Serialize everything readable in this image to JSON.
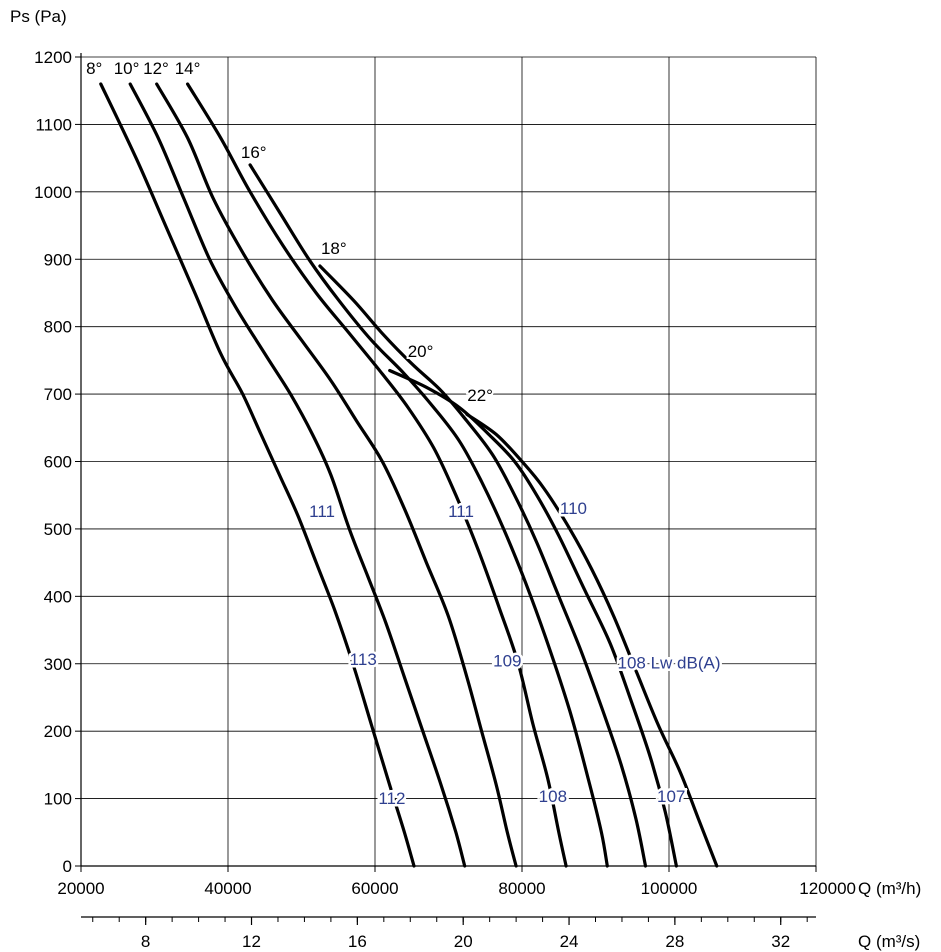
{
  "chart_data": {
    "type": "line",
    "y_axis": {
      "label": "Ps  (Pa)",
      "min": 0,
      "max": 1200,
      "ticks": [
        0,
        100,
        200,
        300,
        400,
        500,
        600,
        700,
        800,
        900,
        1000,
        1100,
        1200
      ]
    },
    "x_axis": {
      "label": "Q (m³/h)",
      "min": 20000,
      "max": 120000,
      "ticks": [
        20000,
        40000,
        60000,
        80000,
        100000,
        120000
      ],
      "tick_labels": [
        "20000",
        "40000",
        "60000",
        "80000",
        "100000",
        "120000"
      ]
    },
    "x2_axis": {
      "label": "Q (m³/s)",
      "min": 5.556,
      "max": 33.333,
      "ticks": [
        8,
        12,
        16,
        20,
        24,
        28,
        32
      ],
      "tick_labels": [
        "8",
        "12",
        "16",
        "20",
        "24",
        "28",
        "32"
      ]
    },
    "grid": true,
    "series": [
      {
        "name": "8°",
        "points": [
          [
            22700,
            1160
          ],
          [
            27500,
            1050
          ],
          [
            31500,
            950
          ],
          [
            35500,
            850
          ],
          [
            39000,
            760
          ],
          [
            42000,
            700
          ],
          [
            44500,
            640
          ],
          [
            47000,
            580
          ],
          [
            49500,
            520
          ],
          [
            52000,
            450
          ],
          [
            54500,
            380
          ],
          [
            57000,
            300
          ],
          [
            59500,
            210
          ],
          [
            62000,
            120
          ],
          [
            64000,
            50
          ],
          [
            65300,
            0
          ]
        ]
      },
      {
        "name": "10°",
        "points": [
          [
            26700,
            1160
          ],
          [
            30500,
            1080
          ],
          [
            34000,
            990
          ],
          [
            37500,
            900
          ],
          [
            41000,
            830
          ],
          [
            45000,
            760
          ],
          [
            48500,
            700
          ],
          [
            51500,
            640
          ],
          [
            54000,
            580
          ],
          [
            56500,
            500
          ],
          [
            59000,
            430
          ],
          [
            61500,
            360
          ],
          [
            64000,
            280
          ],
          [
            66500,
            200
          ],
          [
            69000,
            120
          ],
          [
            71000,
            50
          ],
          [
            72200,
            0
          ]
        ]
      },
      {
        "name": "12°",
        "points": [
          [
            30300,
            1160
          ],
          [
            34500,
            1080
          ],
          [
            38000,
            990
          ],
          [
            42000,
            910
          ],
          [
            46000,
            840
          ],
          [
            50000,
            780
          ],
          [
            54000,
            720
          ],
          [
            57500,
            660
          ],
          [
            61000,
            600
          ],
          [
            64000,
            530
          ],
          [
            67000,
            450
          ],
          [
            70000,
            370
          ],
          [
            72500,
            280
          ],
          [
            74500,
            200
          ],
          [
            76500,
            120
          ],
          [
            78000,
            50
          ],
          [
            79200,
            0
          ]
        ]
      },
      {
        "name": "14°",
        "points": [
          [
            34500,
            1160
          ],
          [
            39000,
            1080
          ],
          [
            43000,
            1000
          ],
          [
            47500,
            920
          ],
          [
            52000,
            850
          ],
          [
            56500,
            790
          ],
          [
            61000,
            730
          ],
          [
            64500,
            680
          ],
          [
            68000,
            620
          ],
          [
            71000,
            550
          ],
          [
            74000,
            470
          ],
          [
            77000,
            380
          ],
          [
            79500,
            300
          ],
          [
            81500,
            210
          ],
          [
            83500,
            130
          ],
          [
            85000,
            50
          ],
          [
            86000,
            0
          ]
        ]
      },
      {
        "name": "16°",
        "points": [
          [
            43000,
            1040
          ],
          [
            47000,
            970
          ],
          [
            51000,
            900
          ],
          [
            55000,
            840
          ],
          [
            59500,
            780
          ],
          [
            64000,
            730
          ],
          [
            68000,
            680
          ],
          [
            71500,
            630
          ],
          [
            74500,
            570
          ],
          [
            77500,
            500
          ],
          [
            80500,
            420
          ],
          [
            83500,
            330
          ],
          [
            86500,
            230
          ],
          [
            89000,
            130
          ],
          [
            90800,
            50
          ],
          [
            91600,
            0
          ]
        ]
      },
      {
        "name": "18°",
        "points": [
          [
            52500,
            890
          ],
          [
            57000,
            840
          ],
          [
            61000,
            790
          ],
          [
            65000,
            745
          ],
          [
            69000,
            705
          ],
          [
            72500,
            660
          ],
          [
            76000,
            610
          ],
          [
            79000,
            550
          ],
          [
            82000,
            480
          ],
          [
            85000,
            400
          ],
          [
            88000,
            320
          ],
          [
            91000,
            230
          ],
          [
            93500,
            150
          ],
          [
            95500,
            70
          ],
          [
            96800,
            0
          ]
        ]
      },
      {
        "name": "20°",
        "points": [
          [
            62000,
            735
          ],
          [
            67000,
            710
          ],
          [
            71500,
            680
          ],
          [
            75500,
            640
          ],
          [
            79000,
            600
          ],
          [
            82000,
            550
          ],
          [
            85000,
            490
          ],
          [
            88500,
            410
          ],
          [
            92000,
            330
          ],
          [
            95000,
            240
          ],
          [
            97500,
            160
          ],
          [
            99500,
            80
          ],
          [
            101000,
            0
          ]
        ]
      },
      {
        "name": "22°",
        "points": [
          [
            72500,
            670
          ],
          [
            76500,
            640
          ],
          [
            80000,
            600
          ],
          [
            83000,
            560
          ],
          [
            86500,
            500
          ],
          [
            89500,
            440
          ],
          [
            92500,
            370
          ],
          [
            95500,
            290
          ],
          [
            98500,
            210
          ],
          [
            101500,
            140
          ],
          [
            104000,
            70
          ],
          [
            106500,
            0
          ]
        ]
      }
    ],
    "series_labels": [
      {
        "text": "8°",
        "x": 21800,
        "y": 1175
      },
      {
        "text": "10°",
        "x": 26200,
        "y": 1175
      },
      {
        "text": "12°",
        "x": 30200,
        "y": 1175
      },
      {
        "text": "14°",
        "x": 34500,
        "y": 1175
      },
      {
        "text": "16°",
        "x": 43500,
        "y": 1050
      },
      {
        "text": "18°",
        "x": 54400,
        "y": 908
      },
      {
        "text": "20°",
        "x": 66200,
        "y": 755
      },
      {
        "text": "22°",
        "x": 74300,
        "y": 690
      }
    ],
    "annotations": [
      {
        "text": "111",
        "x": 52800,
        "y": 518
      },
      {
        "text": "111",
        "x": 71700,
        "y": 518
      },
      {
        "text": "110",
        "x": 87000,
        "y": 522
      },
      {
        "text": "113",
        "x": 58400,
        "y": 298
      },
      {
        "text": "109",
        "x": 78000,
        "y": 296
      },
      {
        "text": "108 Lw dB(A)",
        "x": 100000,
        "y": 293
      },
      {
        "text": "112",
        "x": 62300,
        "y": 92
      },
      {
        "text": "108",
        "x": 84200,
        "y": 95
      },
      {
        "text": "107",
        "x": 100300,
        "y": 95
      }
    ],
    "colors": {
      "curves": "#000000",
      "grid": "#000000",
      "annotations": "#2e3f8f"
    }
  }
}
